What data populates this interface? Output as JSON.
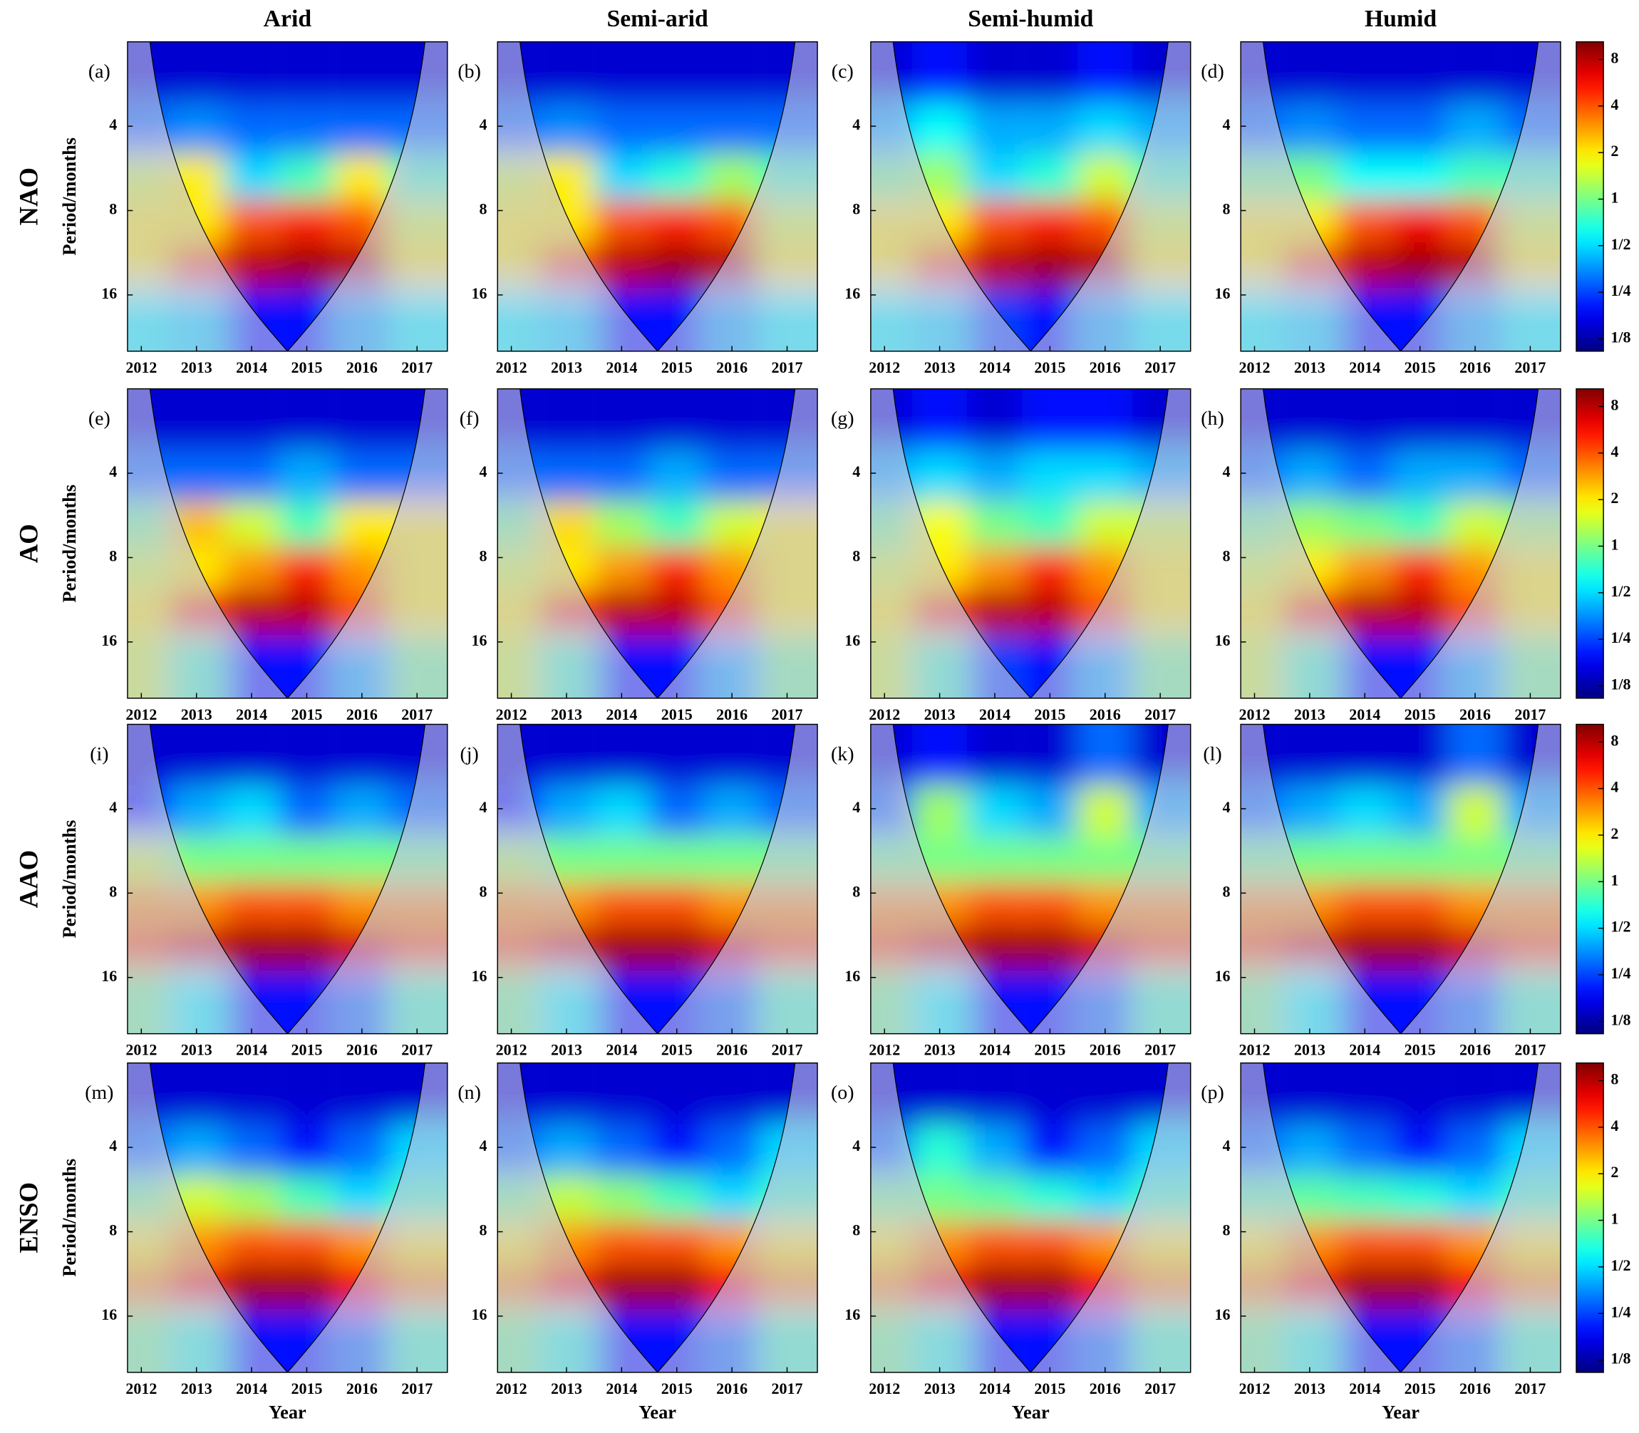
{
  "chart_data": {
    "type": "wavelet-grid",
    "columns": [
      "Arid",
      "Semi-arid",
      "Semi-humid",
      "Humid"
    ],
    "rows": [
      "NAO",
      "AO",
      "AAO",
      "ENSO"
    ],
    "ylabel": "Period/months",
    "xlabel": "Year",
    "xlim": [
      2011.75,
      2017.55
    ],
    "xticks": [
      2012,
      2013,
      2014,
      2015,
      2016,
      2017
    ],
    "ylim": [
      2,
      25.4
    ],
    "yticks": [
      4,
      8,
      16
    ],
    "ylog": true,
    "yreversed": true,
    "colormap": "jet",
    "clim": [
      0.104,
      10.4
    ],
    "cticks": [
      8,
      4,
      2,
      1,
      {
        "value": 0.5,
        "label": "1/2"
      },
      {
        "value": 0.25,
        "label": "1/4"
      },
      {
        "value": 0.125,
        "label": "1/8"
      }
    ],
    "x": [
      2012,
      2013,
      2014,
      2015,
      2016,
      2017
    ],
    "y": [
      2.6,
      4.2,
      6,
      9,
      12,
      19
    ],
    "panels": [
      {
        "label": "(a)",
        "z": [
          [
            0.15,
            0.15,
            0.15,
            0.15,
            0.15,
            0.15
          ],
          [
            0.3,
            0.35,
            0.3,
            0.3,
            0.3,
            0.3
          ],
          [
            1.5,
            2,
            0.5,
            0.8,
            2,
            0.8
          ],
          [
            2,
            2,
            4,
            5,
            4,
            1.5
          ],
          [
            2,
            4,
            8,
            9,
            8,
            2
          ],
          [
            0.6,
            0.5,
            0.2,
            0.2,
            0.4,
            0.6
          ]
        ]
      },
      {
        "label": "(b)",
        "z": [
          [
            0.15,
            0.15,
            0.15,
            0.15,
            0.15,
            0.15
          ],
          [
            0.3,
            0.35,
            0.3,
            0.3,
            0.3,
            0.3
          ],
          [
            1.5,
            2,
            0.5,
            0.7,
            1.2,
            0.8
          ],
          [
            2,
            2,
            4,
            5,
            4,
            1.5
          ],
          [
            2,
            4,
            8,
            9,
            8,
            2
          ],
          [
            0.6,
            0.5,
            0.2,
            0.2,
            0.4,
            0.6
          ]
        ]
      },
      {
        "label": "(c)",
        "z": [
          [
            0.15,
            0.2,
            0.15,
            0.15,
            0.2,
            0.15
          ],
          [
            0.4,
            0.6,
            0.4,
            0.4,
            0.5,
            0.4
          ],
          [
            1,
            1.2,
            0.5,
            0.7,
            1.5,
            0.8
          ],
          [
            2,
            2,
            4,
            5,
            4,
            1.5
          ],
          [
            2,
            4,
            8,
            9,
            8,
            2
          ],
          [
            0.6,
            0.5,
            0.25,
            0.2,
            0.4,
            0.6
          ]
        ]
      },
      {
        "label": "(d)",
        "z": [
          [
            0.15,
            0.15,
            0.15,
            0.15,
            0.15,
            0.15
          ],
          [
            0.3,
            0.35,
            0.3,
            0.3,
            0.4,
            0.3
          ],
          [
            1,
            1,
            0.6,
            0.6,
            0.8,
            0.8
          ],
          [
            2,
            2,
            4,
            6,
            4,
            1.5
          ],
          [
            2,
            4,
            8,
            9,
            8,
            2
          ],
          [
            0.6,
            0.5,
            0.2,
            0.2,
            0.4,
            0.6
          ]
        ]
      },
      {
        "label": "(e)",
        "z": [
          [
            0.15,
            0.15,
            0.15,
            0.15,
            0.15,
            0.15
          ],
          [
            0.3,
            0.3,
            0.3,
            0.4,
            0.3,
            0.3
          ],
          [
            1,
            2.5,
            1.5,
            0.8,
            2,
            2
          ],
          [
            1.5,
            2,
            3,
            5,
            3,
            2
          ],
          [
            2,
            5,
            8,
            8,
            4,
            2
          ],
          [
            1.5,
            0.8,
            0.2,
            0.2,
            0.4,
            1
          ]
        ]
      },
      {
        "label": "(f)",
        "z": [
          [
            0.15,
            0.15,
            0.15,
            0.15,
            0.15,
            0.15
          ],
          [
            0.3,
            0.3,
            0.3,
            0.4,
            0.3,
            0.3
          ],
          [
            1,
            2.2,
            1.2,
            0.8,
            1.5,
            2
          ],
          [
            1.5,
            2,
            3,
            5,
            3,
            2
          ],
          [
            2,
            5,
            8,
            8,
            4,
            2
          ],
          [
            1.5,
            0.8,
            0.2,
            0.2,
            0.4,
            1
          ]
        ]
      },
      {
        "label": "(g)",
        "z": [
          [
            0.15,
            0.2,
            0.15,
            0.2,
            0.2,
            0.15
          ],
          [
            0.4,
            0.5,
            0.4,
            0.5,
            0.5,
            0.4
          ],
          [
            1,
            1.8,
            1,
            0.8,
            1.5,
            1.5
          ],
          [
            1.5,
            2,
            3,
            5,
            3,
            2
          ],
          [
            2,
            5,
            8,
            8,
            4,
            2
          ],
          [
            1.5,
            0.8,
            0.25,
            0.2,
            0.4,
            1
          ]
        ]
      },
      {
        "label": "(h)",
        "z": [
          [
            0.15,
            0.15,
            0.15,
            0.15,
            0.15,
            0.15
          ],
          [
            0.3,
            0.4,
            0.3,
            0.4,
            0.4,
            0.3
          ],
          [
            1,
            1.2,
            1,
            0.8,
            1.5,
            1.2
          ],
          [
            1.5,
            2,
            3,
            5,
            3,
            2
          ],
          [
            2,
            5,
            8,
            8,
            4,
            2
          ],
          [
            1.5,
            0.8,
            0.2,
            0.2,
            0.4,
            1
          ]
        ]
      },
      {
        "label": "(i)",
        "z": [
          [
            0.15,
            0.15,
            0.15,
            0.15,
            0.15,
            0.15
          ],
          [
            0.2,
            0.4,
            0.5,
            0.3,
            0.4,
            0.3
          ],
          [
            1.5,
            1,
            1,
            1,
            1,
            1
          ],
          [
            3,
            3,
            4,
            4,
            3,
            3
          ],
          [
            4,
            7,
            9,
            9,
            7,
            4
          ],
          [
            1,
            0.6,
            0.2,
            0.2,
            0.3,
            0.8
          ]
        ]
      },
      {
        "label": "(j)",
        "z": [
          [
            0.15,
            0.15,
            0.15,
            0.15,
            0.15,
            0.15
          ],
          [
            0.2,
            0.4,
            0.5,
            0.3,
            0.4,
            0.3
          ],
          [
            1.3,
            1,
            1,
            1,
            1,
            1
          ],
          [
            3,
            3,
            4,
            4,
            3,
            3
          ],
          [
            4,
            7,
            9,
            9,
            7,
            4
          ],
          [
            1,
            0.6,
            0.2,
            0.2,
            0.3,
            0.8
          ]
        ]
      },
      {
        "label": "(k)",
        "z": [
          [
            0.15,
            0.2,
            0.15,
            0.15,
            0.3,
            0.15
          ],
          [
            0.3,
            1.2,
            0.5,
            0.4,
            1.5,
            0.4
          ],
          [
            1,
            1,
            1,
            1,
            1,
            1
          ],
          [
            3,
            3,
            4,
            4,
            3,
            3
          ],
          [
            4,
            7,
            9,
            9,
            7,
            4
          ],
          [
            1,
            0.6,
            0.2,
            0.2,
            0.3,
            0.8
          ]
        ]
      },
      {
        "label": "(l)",
        "z": [
          [
            0.15,
            0.15,
            0.15,
            0.15,
            0.3,
            0.15
          ],
          [
            0.3,
            0.4,
            0.5,
            0.4,
            1.5,
            0.4
          ],
          [
            1,
            1,
            1,
            1,
            1,
            1
          ],
          [
            3,
            3,
            4,
            4,
            3,
            3
          ],
          [
            4,
            7,
            9,
            9,
            7,
            4
          ],
          [
            1,
            0.6,
            0.2,
            0.2,
            0.3,
            0.8
          ]
        ]
      },
      {
        "label": "(m)",
        "z": [
          [
            0.15,
            0.15,
            0.15,
            0.15,
            0.15,
            0.15
          ],
          [
            0.3,
            0.4,
            0.3,
            0.2,
            0.3,
            0.5
          ],
          [
            1,
            1.5,
            1.2,
            0.8,
            0.5,
            0.8
          ],
          [
            2,
            3,
            4,
            4,
            3,
            2
          ],
          [
            3,
            6,
            9,
            9,
            6,
            3
          ],
          [
            1,
            0.7,
            0.2,
            0.2,
            0.3,
            0.8
          ]
        ]
      },
      {
        "label": "(n)",
        "z": [
          [
            0.15,
            0.15,
            0.15,
            0.15,
            0.15,
            0.15
          ],
          [
            0.3,
            0.4,
            0.3,
            0.2,
            0.3,
            0.5
          ],
          [
            1,
            1.4,
            1.1,
            0.8,
            0.5,
            0.8
          ],
          [
            2,
            3,
            4,
            4,
            3,
            2
          ],
          [
            3,
            6,
            9,
            9,
            6,
            3
          ],
          [
            1,
            0.7,
            0.2,
            0.2,
            0.3,
            0.8
          ]
        ]
      },
      {
        "label": "(o)",
        "z": [
          [
            0.15,
            0.15,
            0.15,
            0.15,
            0.15,
            0.15
          ],
          [
            0.3,
            0.7,
            0.4,
            0.2,
            0.3,
            0.5
          ],
          [
            1,
            1,
            0.9,
            0.7,
            0.5,
            0.8
          ],
          [
            2,
            3,
            4,
            4,
            3,
            2
          ],
          [
            3,
            6,
            9,
            9,
            6,
            3
          ],
          [
            1,
            0.7,
            0.2,
            0.2,
            0.3,
            0.8
          ]
        ]
      },
      {
        "label": "(p)",
        "z": [
          [
            0.15,
            0.15,
            0.15,
            0.15,
            0.15,
            0.15
          ],
          [
            0.3,
            0.4,
            0.3,
            0.2,
            0.3,
            0.5
          ],
          [
            0.9,
            0.9,
            0.8,
            0.7,
            0.5,
            0.8
          ],
          [
            2,
            3,
            4,
            4,
            3,
            2
          ],
          [
            3,
            6,
            9,
            9,
            6,
            3
          ],
          [
            1,
            0.7,
            0.2,
            0.2,
            0.3,
            0.8
          ]
        ]
      }
    ]
  }
}
